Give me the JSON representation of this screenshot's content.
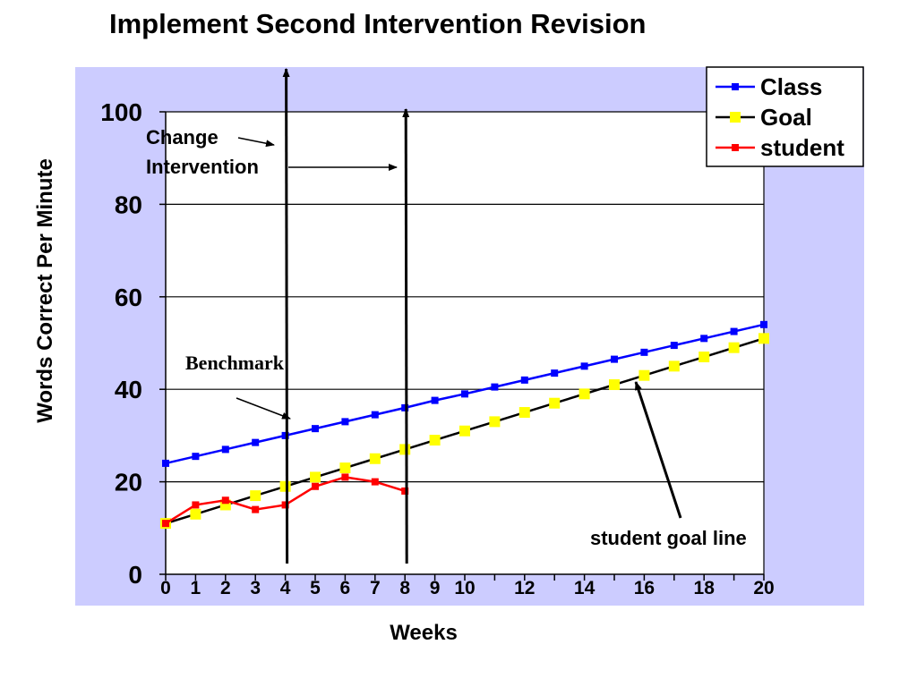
{
  "chart_data": {
    "type": "line",
    "title": "Implement Second Intervention Revision",
    "xlabel": "Weeks",
    "ylabel": "Words Correct Per Minute",
    "xlim": [
      0,
      20
    ],
    "ylim": [
      0,
      100
    ],
    "y_ticks": [
      0,
      20,
      40,
      60,
      80,
      100
    ],
    "x_ticks": [
      0,
      1,
      2,
      3,
      4,
      5,
      6,
      7,
      8,
      9,
      10,
      12,
      14,
      16,
      18,
      20
    ],
    "grid": "horizontal",
    "legend_position": "top-right",
    "series": [
      {
        "name": "Class",
        "color": "#0000FF",
        "marker_color": "#0000FF",
        "marker": "square",
        "x": [
          0,
          1,
          2,
          3,
          4,
          5,
          6,
          7,
          8,
          9,
          10,
          11,
          12,
          13,
          14,
          15,
          16,
          17,
          18,
          19,
          20
        ],
        "values": [
          24,
          25.5,
          27,
          28.5,
          30,
          31.5,
          33,
          34.5,
          36,
          37.6,
          39,
          40.5,
          42,
          43.5,
          45,
          46.5,
          48,
          49.5,
          51,
          52.5,
          54
        ]
      },
      {
        "name": "Goal",
        "color": "#000000",
        "marker_color": "#FFFF00",
        "marker": "square",
        "x": [
          0,
          1,
          2,
          3,
          4,
          5,
          6,
          7,
          8,
          9,
          10,
          11,
          12,
          13,
          14,
          15,
          16,
          17,
          18,
          19,
          20
        ],
        "values": [
          11,
          13,
          15,
          17,
          19,
          21,
          23,
          25,
          27,
          29,
          31,
          33,
          35,
          37,
          39,
          41,
          43,
          45,
          47,
          49,
          51
        ]
      },
      {
        "name": "student",
        "color": "#FF0000",
        "marker_color": "#FF0000",
        "marker": "square",
        "x": [
          0,
          1,
          2,
          3,
          4,
          5,
          6,
          7,
          8
        ],
        "values": [
          11,
          15,
          16,
          14,
          15,
          19,
          21,
          20,
          18
        ]
      }
    ],
    "vertical_lines": [
      4,
      8
    ],
    "annotations": {
      "change_line1": "Change",
      "change_line2": "Intervention",
      "benchmark": "Benchmark",
      "goal_line": "student goal line"
    }
  }
}
